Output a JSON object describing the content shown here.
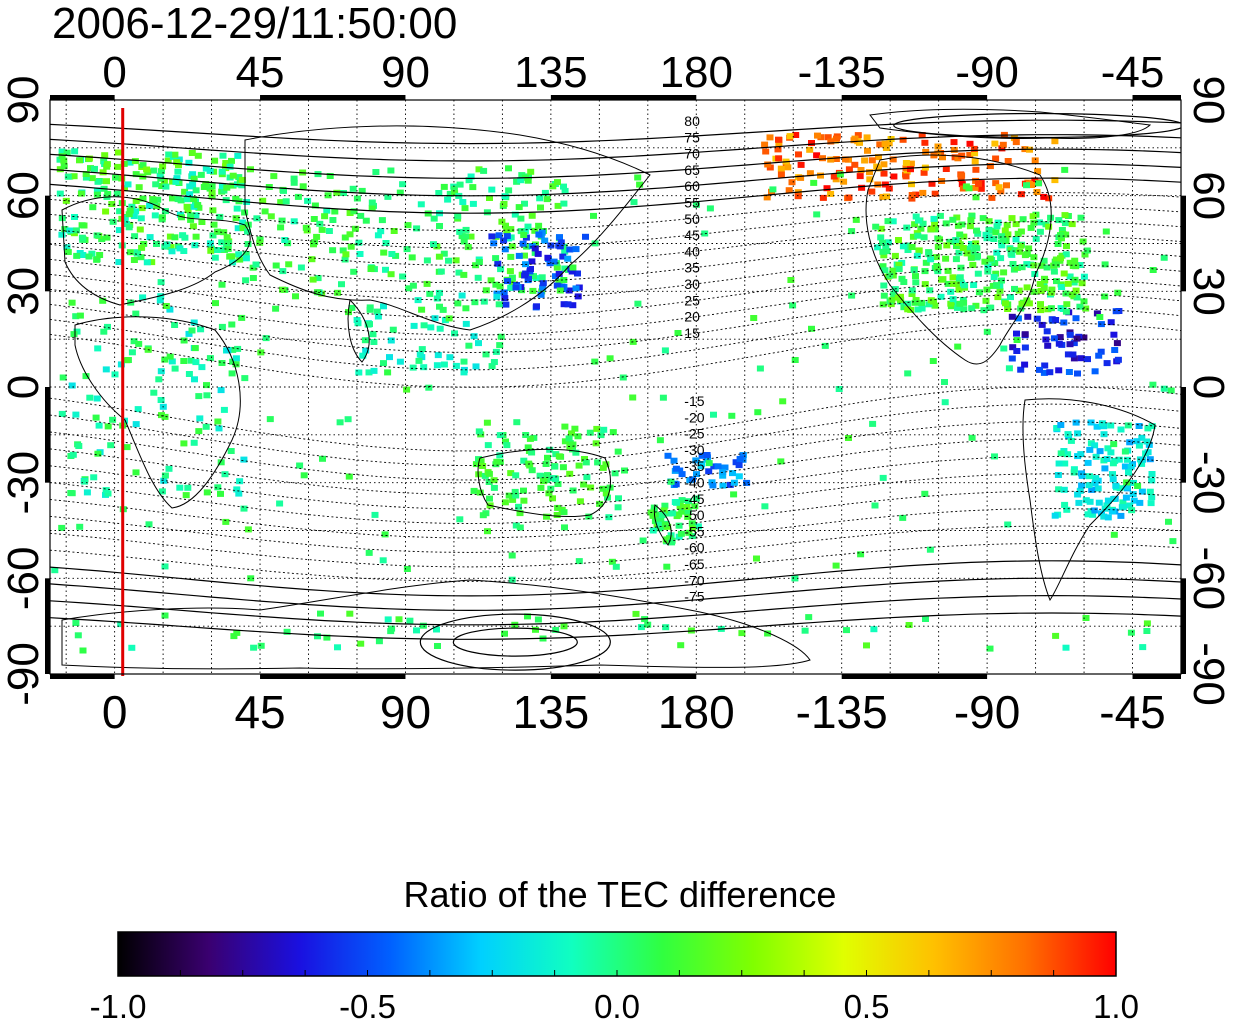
{
  "timestamp": "2006-12-29/11:50:00",
  "map": {
    "lon_ticks": [
      "0",
      "45",
      "90",
      "135",
      "180",
      "-135",
      "-90",
      "-45"
    ],
    "lat_ticks_left": [
      "90",
      "60",
      "30",
      "0",
      "-30",
      "-60",
      "-90"
    ],
    "lat_ticks_right": [
      "90",
      "60",
      "30",
      "0",
      "-30",
      "-60",
      "-90"
    ],
    "lon_range": [
      -20,
      330
    ],
    "lat_range": [
      -90,
      90
    ],
    "marker_longitude": 2.5,
    "marker_color": "#e00000",
    "contour_labels_north": [
      "80",
      "75",
      "70",
      "65",
      "60",
      "55",
      "50",
      "45",
      "40",
      "35",
      "30",
      "25",
      "20",
      "15"
    ],
    "contour_labels_south": [
      "-15",
      "-20",
      "-25",
      "-30",
      "-35",
      "-40",
      "-45",
      "-50",
      "-55",
      "-60",
      "-65",
      "-70",
      "-75"
    ]
  },
  "colorbar": {
    "title": "Ratio of the TEC difference",
    "tick_labels": [
      "-1.0",
      "-0.5",
      "0.0",
      "0.5",
      "1.0"
    ],
    "range": [
      -1.0,
      1.0
    ],
    "colors": [
      "#000000",
      "#3a0070",
      "#1a10e0",
      "#0060ff",
      "#00d0ff",
      "#10ffc0",
      "#30ff40",
      "#80ff00",
      "#e0ff00",
      "#ffc000",
      "#ff7000",
      "#ff0000"
    ]
  }
}
